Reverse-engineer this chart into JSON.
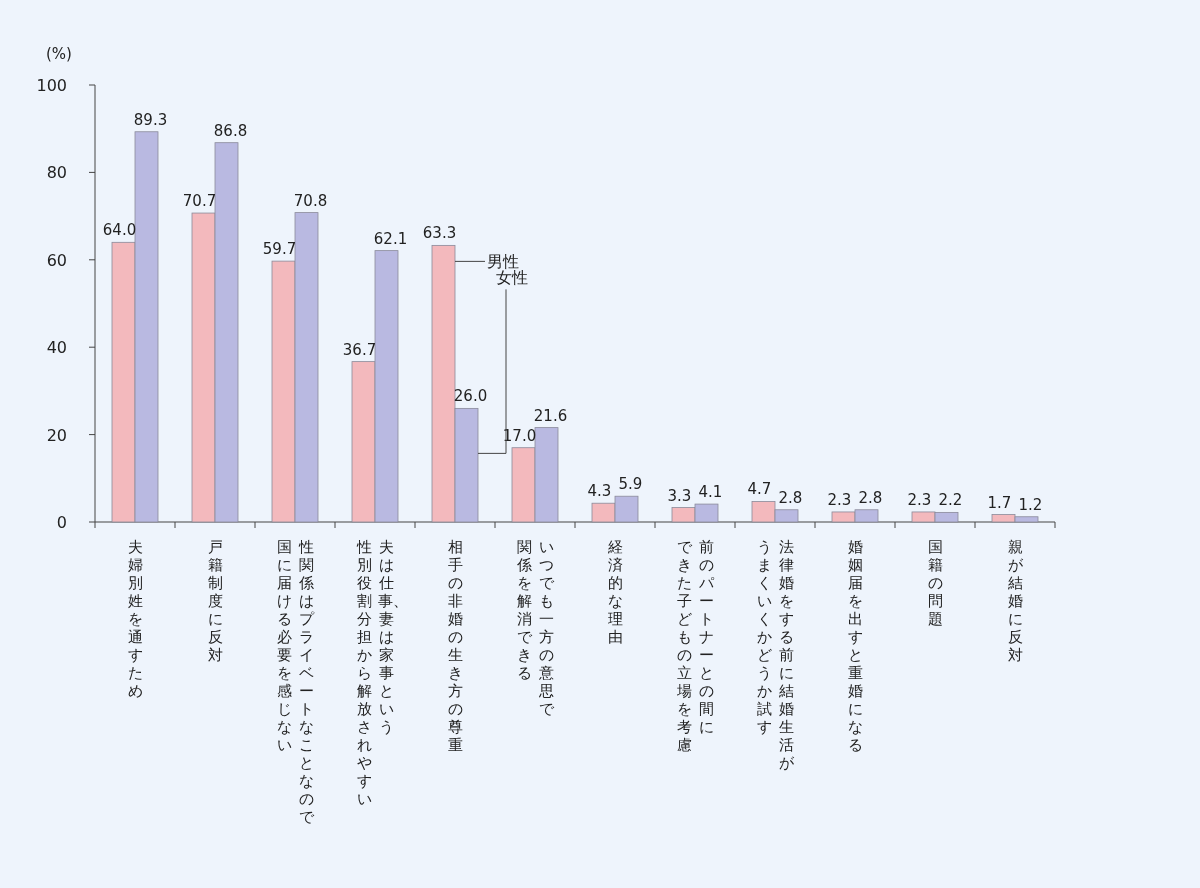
{
  "chart_data": {
    "type": "bar",
    "ylabel": "(%)",
    "categories": [
      "夫婦別姓を通すため",
      "戸籍制度に反対",
      "性関係はプライベートなことなので国に届ける必要を感じない",
      "夫は仕事、妻は家事という性別役割分担から解放されやすい",
      "相手の非婚の生き方の尊重",
      "いつでも一方の意思で関係を解消できる",
      "経済的な理由",
      "前のパートナーとの間にできた子どもの立場を考慮",
      "法律婚をする前に結婚生活がうまくいくかどうか試す",
      "婚姻届を出すと重婚になる",
      "国籍の問題",
      "親が結婚に反対"
    ],
    "series": [
      {
        "name": "男性",
        "color": "#f3b9bd",
        "values": [
          64.0,
          70.7,
          59.7,
          36.7,
          63.3,
          17.0,
          4.3,
          3.3,
          4.7,
          2.3,
          2.3,
          1.7
        ],
        "value_labels": [
          "64.0",
          "70.7",
          "59.7",
          "36.7",
          "63.3",
          "17.0",
          "4.3",
          "3.3",
          "4.7",
          "2.3",
          "2.3",
          "1.7"
        ]
      },
      {
        "name": "女性",
        "color": "#b9b9e1",
        "values": [
          89.3,
          86.8,
          70.8,
          62.1,
          26.0,
          21.6,
          5.9,
          4.1,
          2.8,
          2.8,
          2.2,
          1.2
        ],
        "value_labels": [
          "89.3",
          "86.8",
          "70.8",
          "62.1",
          "26.0",
          "21.6",
          "5.9",
          "4.1",
          "2.8",
          "2.8",
          "2.2",
          "1.2"
        ]
      }
    ],
    "ylim": [
      0,
      100
    ],
    "yticks": [
      0,
      20,
      40,
      60,
      80,
      100
    ],
    "data_labels": true
  }
}
